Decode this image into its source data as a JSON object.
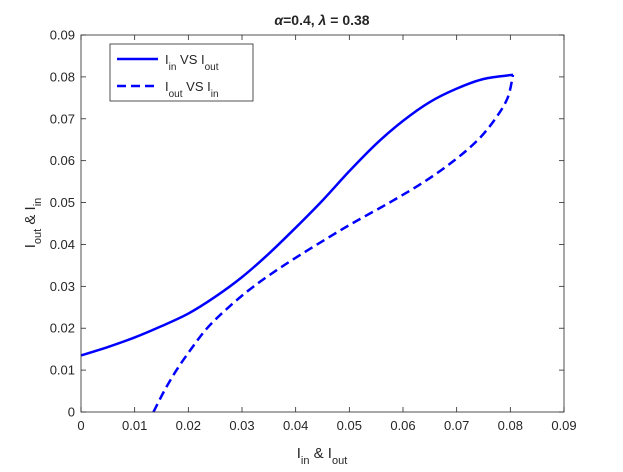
{
  "chart_data": {
    "type": "line",
    "title": "α=0.4, λ = 0.38",
    "xlabel": "I_in & I_out",
    "ylabel": "I_out & I_in",
    "xlim": [
      0,
      0.09
    ],
    "ylim": [
      0,
      0.09
    ],
    "x_ticks": [
      "0",
      "0.01",
      "0.02",
      "0.03",
      "0.04",
      "0.05",
      "0.06",
      "0.07",
      "0.08",
      "0.09"
    ],
    "y_ticks": [
      "0",
      "0.01",
      "0.02",
      "0.03",
      "0.04",
      "0.05",
      "0.06",
      "0.07",
      "0.08",
      "0.09"
    ],
    "grid": false,
    "legend_position": "top-left",
    "series": [
      {
        "name": "I_in VS I_out",
        "style": "solid",
        "color": "#0000ff",
        "x": [
          0,
          0.005,
          0.01,
          0.015,
          0.02,
          0.025,
          0.03,
          0.035,
          0.04,
          0.045,
          0.05,
          0.055,
          0.06,
          0.065,
          0.07,
          0.075,
          0.0805
        ],
        "y": [
          0.0135,
          0.0155,
          0.0178,
          0.0205,
          0.0235,
          0.0275,
          0.0322,
          0.0378,
          0.044,
          0.0505,
          0.0575,
          0.064,
          0.0695,
          0.074,
          0.0772,
          0.0795,
          0.0805
        ]
      },
      {
        "name": "I_out VS I_in",
        "style": "dashed",
        "color": "#0000ff",
        "x": [
          0.0135,
          0.0155,
          0.0178,
          0.0205,
          0.0235,
          0.0275,
          0.0322,
          0.0378,
          0.044,
          0.0505,
          0.0575,
          0.064,
          0.0695,
          0.074,
          0.0772,
          0.0795,
          0.0805
        ],
        "y": [
          0,
          0.005,
          0.01,
          0.015,
          0.02,
          0.025,
          0.03,
          0.035,
          0.04,
          0.045,
          0.05,
          0.055,
          0.06,
          0.065,
          0.07,
          0.075,
          0.0805
        ]
      }
    ]
  }
}
